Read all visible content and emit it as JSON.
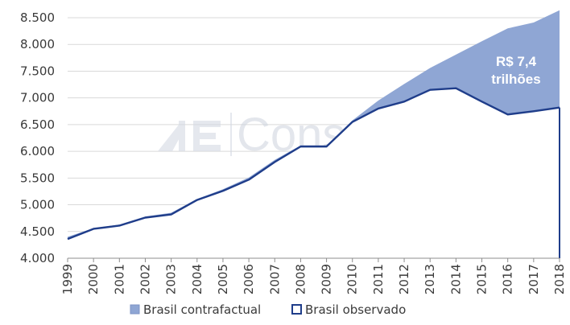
{
  "chart_data": {
    "type": "area",
    "title": "",
    "xlabel": "",
    "ylabel": "",
    "x": [
      "1999",
      "2000",
      "2001",
      "2002",
      "2003",
      "2004",
      "2005",
      "2006",
      "2007",
      "2008",
      "2009",
      "2010",
      "2011",
      "2012",
      "2013",
      "2014",
      "2015",
      "2016",
      "2017",
      "2018"
    ],
    "ylim": [
      4000,
      8500
    ],
    "y_ticks": [
      "4.000",
      "4.500",
      "5.000",
      "5.500",
      "6.000",
      "6.500",
      "7.000",
      "7.500",
      "8.000",
      "8.500"
    ],
    "grid": "horizontal",
    "legend_position": "bottom",
    "series": [
      {
        "name": "Brasil contrafactual",
        "style": "area",
        "color": "#8fa6d4",
        "values": [
          4400,
          4560,
          4630,
          4780,
          4850,
          5110,
          5290,
          5510,
          5840,
          6110,
          6110,
          6580,
          6950,
          7260,
          7560,
          7810,
          8060,
          8300,
          8410,
          8640
        ]
      },
      {
        "name": "Brasil observado",
        "style": "line",
        "color": "#1f3d8a",
        "values": [
          4360,
          4550,
          4610,
          4760,
          4820,
          5090,
          5260,
          5470,
          5800,
          6090,
          6090,
          6550,
          6800,
          6930,
          7150,
          7180,
          6930,
          6690,
          6750,
          6820
        ]
      }
    ],
    "annotation": {
      "line1": "R$ 7,4",
      "line2": "trilhões"
    },
    "watermark": {
      "text": "Cons"
    }
  }
}
